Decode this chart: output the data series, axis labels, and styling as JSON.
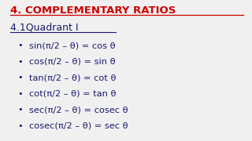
{
  "title": "4. COMPLEMENTARY RATIOS",
  "subtitle": "4.1Quadrant I",
  "formulas": [
    "sin(π/2 – θ) = cos θ",
    "cos(π/2 – θ) = sin θ",
    "tan(π/2 – θ) = cot θ",
    "cot(π/2 – θ) = tan θ",
    "sec(π/2 – θ) = cosec θ",
    "cosec(π/2 – θ) = sec θ"
  ],
  "bg_color": "#f0f0f0",
  "title_color": "#cc0000",
  "text_color": "#1a1a6e",
  "title_fontsize": 9.5,
  "subtitle_fontsize": 9.0,
  "formula_fontsize": 8.2
}
